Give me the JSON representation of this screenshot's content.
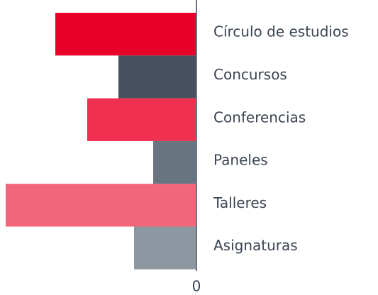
{
  "chart_data": {
    "type": "hbar",
    "categories": [
      "Círculo de estudios",
      "Concursos",
      "Conferencias",
      "Paneles",
      "Talleres",
      "Asignaturas"
    ],
    "values": [
      199,
      110,
      154,
      61,
      269,
      88
    ],
    "colors": [
      "#e8002a",
      "#46505f",
      "#ef3050",
      "#687580",
      "#f2667a",
      "#8d97a1"
    ],
    "xlim": [
      270,
      0
    ],
    "xticks": [
      0
    ]
  }
}
